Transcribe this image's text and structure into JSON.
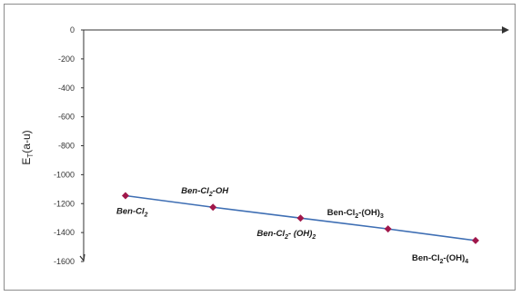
{
  "chart_data": {
    "type": "line",
    "title": "",
    "xlabel": "",
    "ylabel": "E_T(a-u)",
    "ylim": [
      -1600,
      0
    ],
    "yticks": [
      0,
      -200,
      -400,
      -600,
      -800,
      -1000,
      -1200,
      -1400,
      -1600
    ],
    "grid": false,
    "legend": "none",
    "colors": {
      "line": "#3f6fb4",
      "marker": "#a0174a",
      "axis": "#333333"
    },
    "points": [
      {
        "label_main": "Ben-Cl",
        "label_sub": "2",
        "label_tail": "",
        "label_sub2": "",
        "y": -1145,
        "label_pos": "below",
        "italic": true
      },
      {
        "label_main": "Ben-Cl",
        "label_sub": "2",
        "label_tail": "-OH",
        "label_sub2": "",
        "y": -1225,
        "label_pos": "above",
        "italic": true
      },
      {
        "label_main": "Ben-Cl",
        "label_sub": "2",
        "label_tail": "- (OH)",
        "label_sub2": "2",
        "y": -1300,
        "label_pos": "below",
        "italic": true
      },
      {
        "label_main": "Ben-Cl",
        "label_sub": "2",
        "label_tail": "-(OH)",
        "label_sub2": "3",
        "y": -1375,
        "label_pos": "above",
        "italic": false
      },
      {
        "label_main": "Ben-Cl",
        "label_sub": "2",
        "label_tail": "-(OH)",
        "label_sub2": "4",
        "y": -1455,
        "label_pos": "below",
        "italic": false
      }
    ]
  }
}
